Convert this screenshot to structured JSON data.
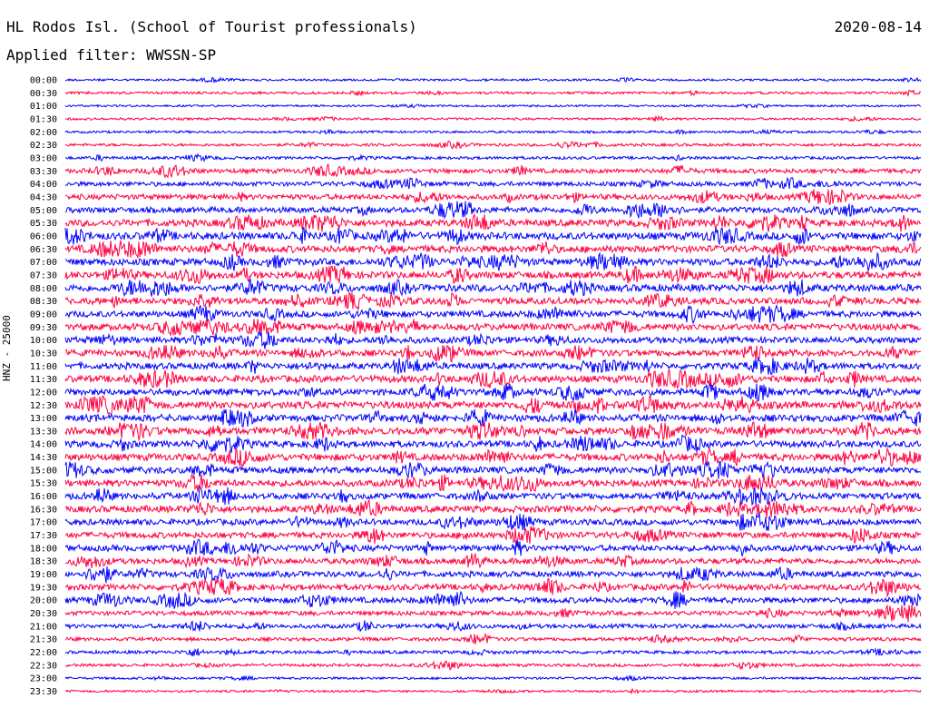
{
  "header": {
    "station": "HL Rodos Isl. (School of Tourist professionals)",
    "date": "2020-08-14",
    "filter": "Applied filter: WWSSN-SP"
  },
  "chart_data": {
    "type": "line",
    "title": "HL Rodos Isl. (School of Tourist professionals)",
    "ylabel": "HNZ - 25000",
    "grid": false,
    "legend": "none",
    "row_colors": [
      "#0000ff",
      "#ff0040"
    ],
    "tick_labels": [
      "00:00",
      "00:30",
      "01:00",
      "01:30",
      "02:00",
      "02:30",
      "03:00",
      "03:30",
      "04:00",
      "04:30",
      "05:00",
      "05:30",
      "06:00",
      "06:30",
      "07:00",
      "07:30",
      "08:00",
      "08:30",
      "09:00",
      "09:30",
      "10:00",
      "10:30",
      "11:00",
      "11:30",
      "12:00",
      "12:30",
      "13:00",
      "13:30",
      "14:00",
      "14:30",
      "15:00",
      "15:30",
      "16:00",
      "16:30",
      "17:00",
      "17:30",
      "18:00",
      "18:30",
      "19:00",
      "19:30",
      "20:00",
      "20:30",
      "21:00",
      "21:30",
      "22:00",
      "22:30",
      "23:00",
      "23:30"
    ],
    "series_activity": [
      0.18,
      0.22,
      0.15,
      0.2,
      0.2,
      0.28,
      0.3,
      0.55,
      0.55,
      0.7,
      0.75,
      0.95,
      1.0,
      0.95,
      0.95,
      0.95,
      1.0,
      0.9,
      0.85,
      0.9,
      0.85,
      0.85,
      0.85,
      0.95,
      0.9,
      1.0,
      0.95,
      1.0,
      0.9,
      0.95,
      0.9,
      0.9,
      0.85,
      0.9,
      0.8,
      0.8,
      0.8,
      0.75,
      0.75,
      0.8,
      0.75,
      0.55,
      0.5,
      0.4,
      0.35,
      0.3,
      0.2,
      0.18
    ]
  }
}
